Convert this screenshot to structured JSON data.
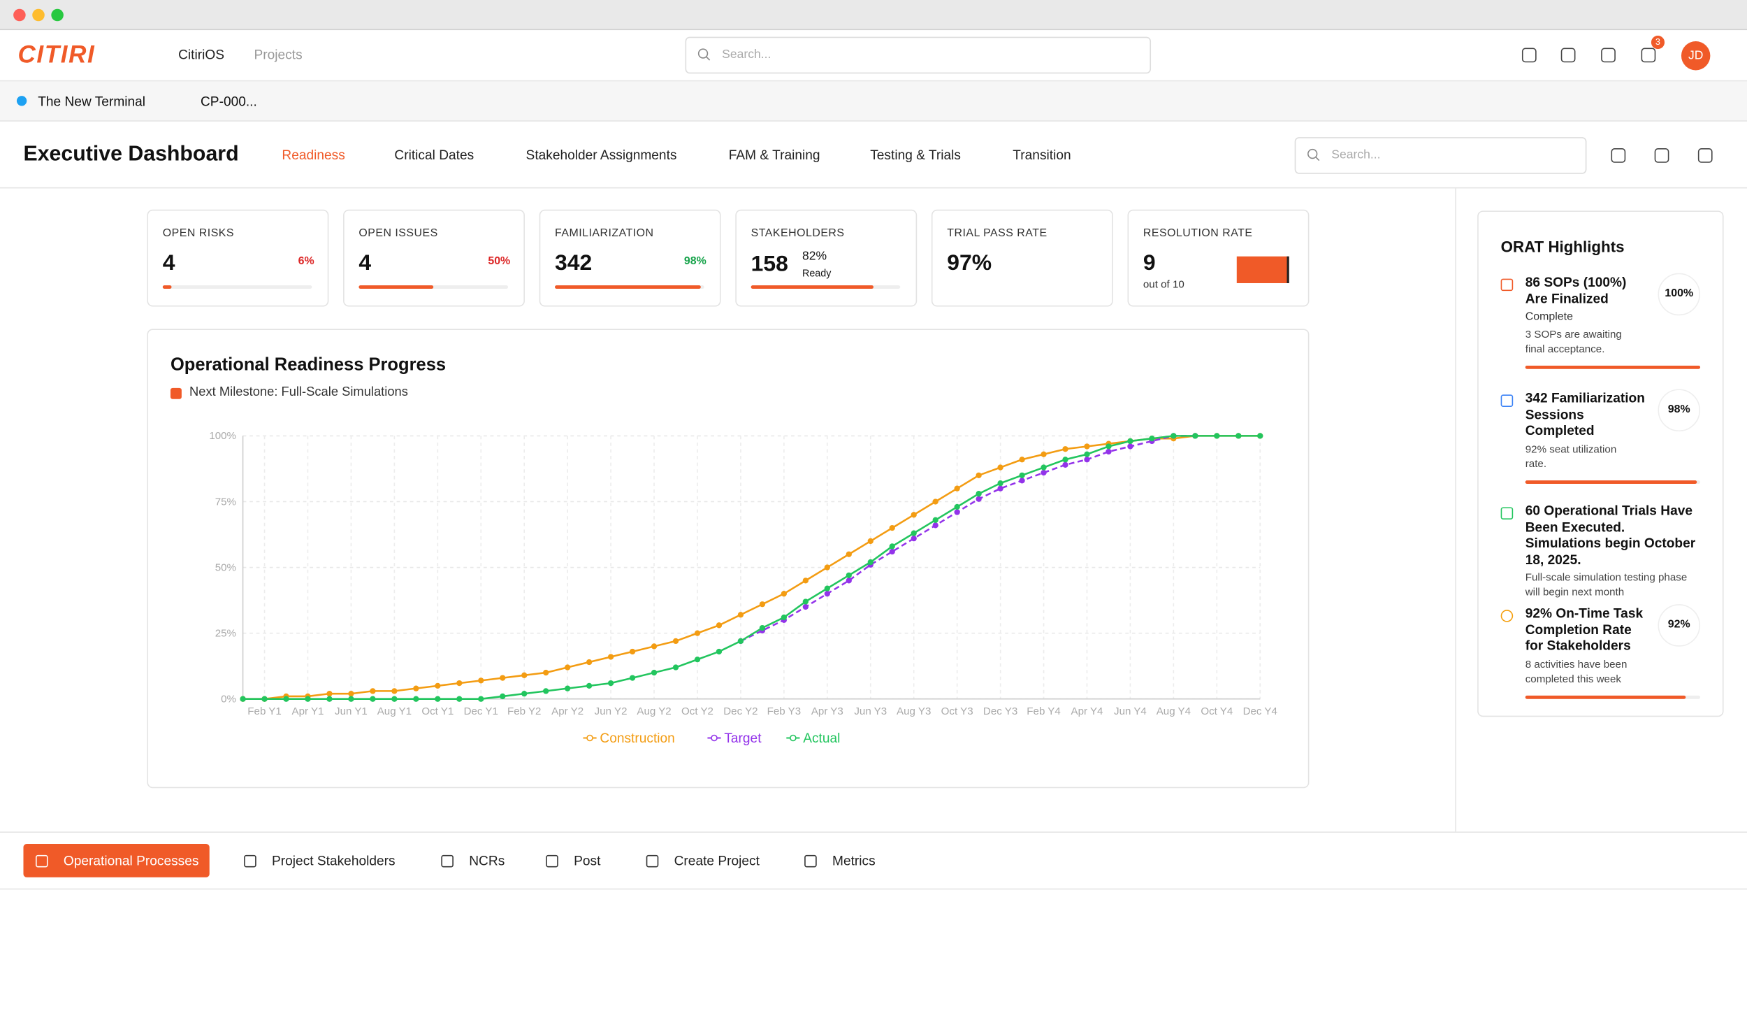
{
  "window": {
    "logo": "CITIRI",
    "app": "CitiriOS",
    "menu": "Projects",
    "search": "Search...",
    "badge": 3,
    "avatar": "JD"
  },
  "tabs": [
    "The New Terminal",
    "CP-000..."
  ],
  "dashboard": {
    "title": "Executive Dashboard",
    "nav": [
      "Readiness",
      "Critical Dates",
      "Stakeholder Assignments",
      "FAM & Training",
      "Testing & Trials",
      "Transition"
    ],
    "search": "Search..."
  },
  "kpis": [
    {
      "label": "OPEN RISKS",
      "value": 4,
      "change": {
        "value": 6,
        "label": "6%"
      },
      "trend": "down"
    },
    {
      "label": "OPEN ISSUES",
      "value": 4,
      "change": {
        "value": 50,
        "label": "50%"
      },
      "trend": "down"
    },
    {
      "label": "FAMILIARIZATION",
      "value": 342,
      "change": {
        "value": 98,
        "label": "98%"
      },
      "trend": "up"
    },
    {
      "label": "STAKEHOLDERS",
      "value": 158,
      "ready": {
        "value": 82,
        "label": "82%"
      },
      "ready_text": "Ready"
    },
    {
      "label": "TRIAL PASS RATE",
      "value": {
        "value": 97,
        "label": "97%"
      }
    },
    {
      "label": "RESOLUTION RATE",
      "value": 9,
      "of": "out of 10",
      "max": 10
    }
  ],
  "chart_data": {
    "type": "line",
    "title": "Operational Readiness Progress",
    "milestone": "Next Milestone: Full-Scale Simulations",
    "categories": [
      null,
      "Feb Y1",
      null,
      "Apr Y1",
      null,
      "Jun Y1",
      null,
      "Aug Y1",
      null,
      "Oct Y1",
      null,
      "Dec Y1",
      null,
      "Feb Y2",
      null,
      "Apr Y2",
      null,
      "Jun Y2",
      null,
      "Aug Y2",
      null,
      "Oct Y2",
      null,
      "Dec Y2",
      null,
      "Feb Y3",
      null,
      "Apr Y3",
      null,
      "Jun Y3",
      null,
      "Aug Y3",
      null,
      "Oct Y3",
      null,
      "Dec Y3",
      null,
      "Feb Y4",
      null,
      "Apr Y4",
      null,
      "Jun Y4",
      null,
      "Aug Y4",
      null,
      "Oct Y4",
      null,
      "Dec Y4"
    ],
    "series": [
      {
        "name": "Construction",
        "color": "#f39c12",
        "dashed": false,
        "values": [
          0,
          0,
          1,
          1,
          2,
          2,
          3,
          3,
          4,
          5,
          6,
          7,
          8,
          9,
          10,
          12,
          14,
          16,
          18,
          20,
          22,
          25,
          28,
          32,
          36,
          40,
          45,
          50,
          55,
          60,
          65,
          70,
          75,
          80,
          85,
          88,
          91,
          93,
          95,
          96,
          97,
          98,
          99,
          99,
          100,
          100,
          100,
          100
        ]
      },
      {
        "name": "Target",
        "color": "#9333ea",
        "dashed": true,
        "values": [
          null,
          null,
          null,
          null,
          null,
          null,
          null,
          null,
          null,
          null,
          null,
          null,
          null,
          null,
          null,
          null,
          null,
          null,
          null,
          null,
          null,
          null,
          null,
          22,
          26,
          30,
          35,
          40,
          45,
          51,
          56,
          61,
          66,
          71,
          76,
          80,
          83,
          86,
          89,
          91,
          94,
          96,
          98,
          100,
          100,
          null,
          null,
          null
        ]
      },
      {
        "name": "Actual",
        "color": "#22c55e",
        "dashed": false,
        "values": [
          0,
          0,
          0,
          0,
          0,
          0,
          0,
          0,
          0,
          0,
          0,
          0,
          1,
          2,
          3,
          4,
          5,
          6,
          8,
          10,
          12,
          15,
          18,
          22,
          27,
          31,
          37,
          42,
          47,
          52,
          58,
          63,
          68,
          73,
          78,
          82,
          85,
          88,
          91,
          93,
          96,
          98,
          99,
          100,
          100,
          100,
          100,
          100
        ]
      }
    ],
    "ylim": [
      0,
      100
    ],
    "yticks": [
      {
        "value": 0,
        "label": "0%"
      },
      {
        "value": 25,
        "label": "25%"
      },
      {
        "value": 50,
        "label": "50%"
      },
      {
        "value": 75,
        "label": "75%"
      },
      {
        "value": 100,
        "label": "100%"
      }
    ],
    "grid": true
  },
  "highlights": {
    "title": "ORAT Highlights",
    "items": [
      {
        "title": "86 SOPs (100%) Are Finalized",
        "status": "Complete",
        "note": "3 SOPs are awaiting final acceptance.",
        "badge": {
          "value": 100,
          "label": "100%"
        }
      },
      {
        "title": "342 Familiarization Sessions Completed",
        "note": "92% seat utilization rate.",
        "badge": {
          "value": 98,
          "label": "98%"
        }
      },
      {
        "title": "60 Operational Trials Have Been Executed. Simulations begin October 18, 2025.",
        "note": "Full-scale simulation testing phase will begin next month"
      },
      {
        "title": "92% On-Time Task Completion Rate for Stakeholders",
        "note": "8 activities have been completed this week",
        "badge": {
          "value": 92,
          "label": "92%"
        }
      }
    ]
  },
  "toolbar": [
    "Operational Processes",
    "Project Stakeholders",
    "NCRs",
    "Post",
    "Create Project",
    "Metrics"
  ]
}
